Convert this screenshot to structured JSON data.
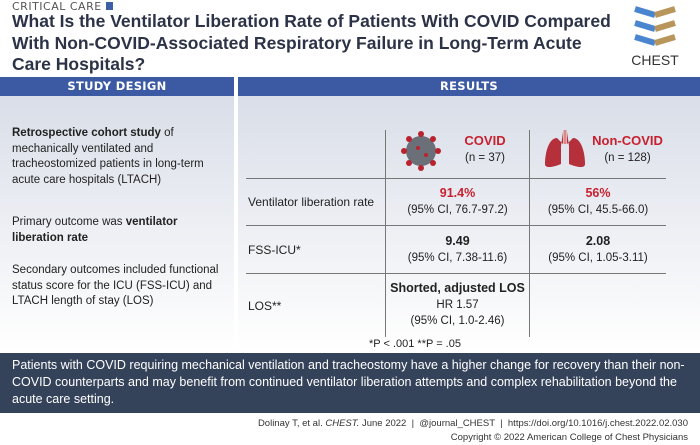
{
  "header": {
    "category": "CRITICAL CARE",
    "title": "What Is the Ventilator Liberation Rate of Patients With COVID Compared With Non-COVID-Associated Respiratory Failure in Long-Term Acute Care Hospitals?",
    "logo_text": "CHEST"
  },
  "study_design": {
    "heading": "STUDY DESIGN",
    "p1_bold": "Retrospective cohort study",
    "p1_rest": " of mechanically ventilated and tracheostomized patients in long-term acute care hospitals (LTACH)",
    "p2_start": "Primary outcome was ",
    "p2_bold": "ventilator liberation rate",
    "p3": "Secondary outcomes included functional status score for the ICU (FSS-ICU) and LTACH length of stay (LOS)"
  },
  "results": {
    "heading": "RESULTS",
    "groups": [
      {
        "name": "COVID",
        "n": "(n = 37)",
        "icon": "coronavirus-icon"
      },
      {
        "name": "Non-COVID",
        "n": "(n = 128)",
        "icon": "lungs-icon"
      }
    ],
    "rows": [
      {
        "label": "Ventilator liberation rate",
        "covid": {
          "main": "91.4%",
          "ci": "(95% CI, 76.7-97.2)"
        },
        "noncovid": {
          "main": "56%",
          "ci": "(95% CI, 45.5-66.0)"
        }
      },
      {
        "label": "FSS-ICU*",
        "covid": {
          "main": "9.49",
          "ci": "(95% CI, 7.38-11.6)"
        },
        "noncovid": {
          "main": "2.08",
          "ci": "(95% CI, 1.05-3.11)"
        }
      },
      {
        "label": "LOS**",
        "covid": {
          "main": "Shorted, adjusted LOS",
          "hr": "HR 1.57",
          "ci": "(95% CI, 1.0-2.46)"
        }
      }
    ],
    "pvalue_note": "*P < .001 **P = .05"
  },
  "conclusion": "Patients with COVID requiring mechanical ventilation and tracheostomy have a higher change for recovery than their non-COVID counterparts and may benefit from continued ventilator liberation attempts and complex rehabilitation beyond the acute care setting.",
  "footer": {
    "citation_authors": "Dolinay T, et al. ",
    "citation_journal": "CHEST.",
    "citation_date": " June 2022",
    "separator": "|",
    "twitter": "@journal_CHEST",
    "doi": "https://doi.org/10.1016/j.chest.2022.02.030",
    "copyright": "Copyright © 2022 American College of Chest Physicians"
  },
  "colors": {
    "bar": "#3b5aa3",
    "banner": "#34425a",
    "accent_red": "#c8202f"
  }
}
